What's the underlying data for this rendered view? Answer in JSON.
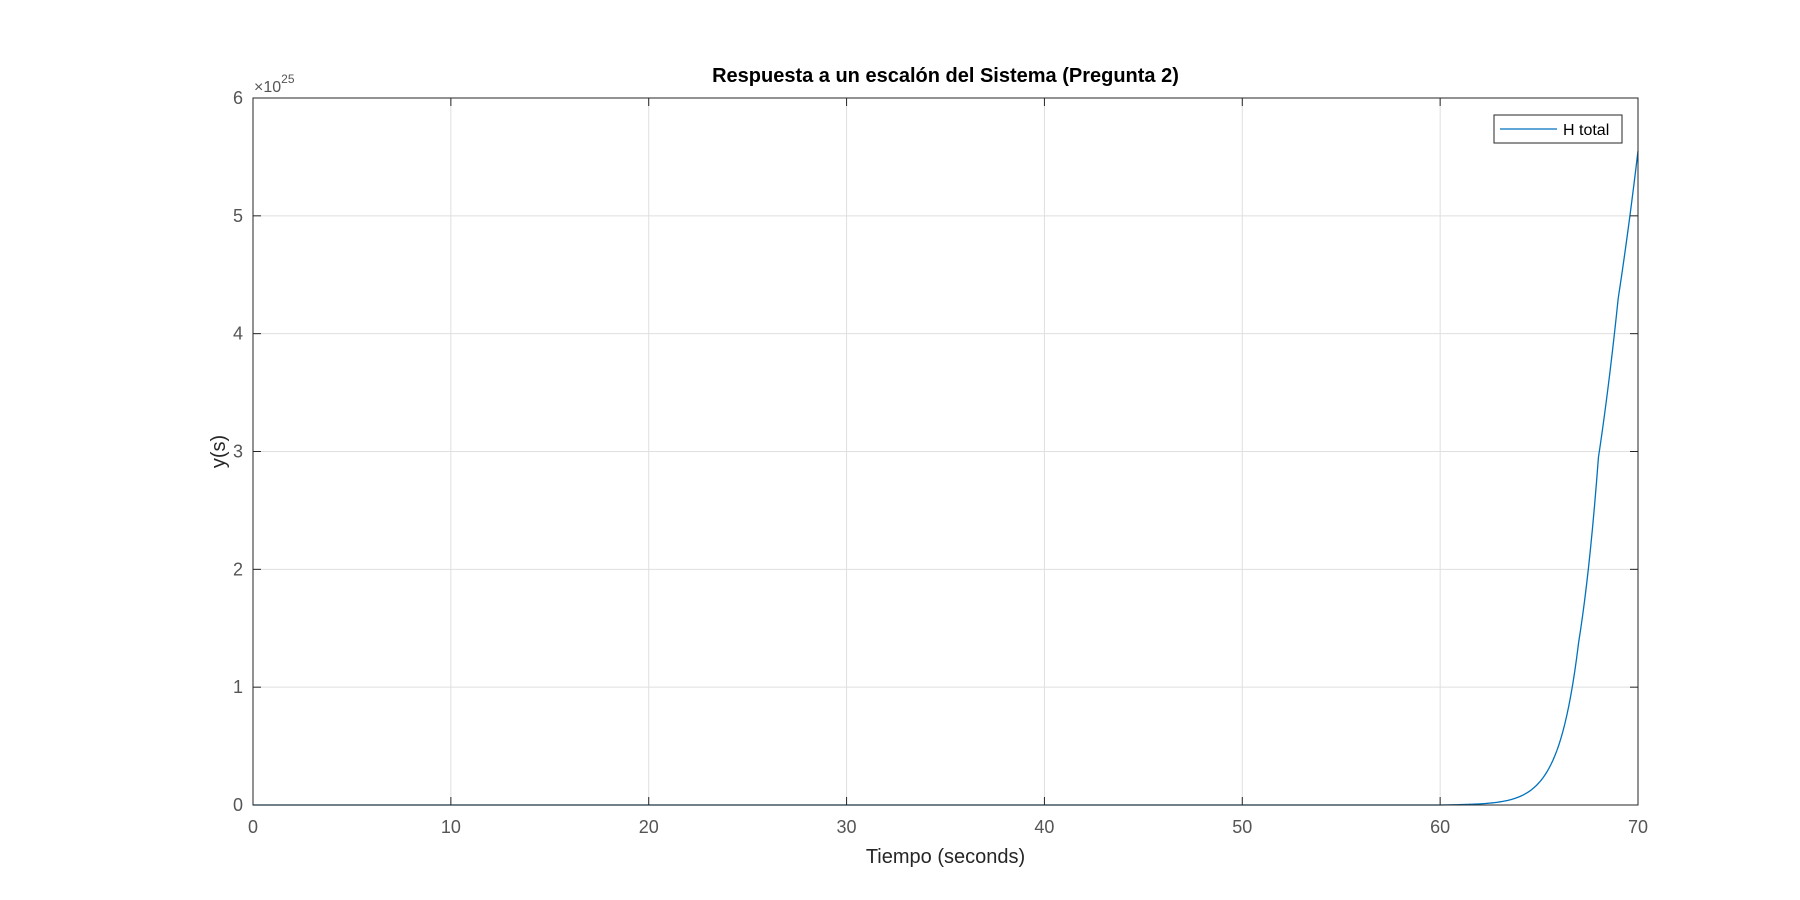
{
  "chart_data": {
    "type": "line",
    "title": "Respuesta a un escalón del Sistema (Pregunta 2)",
    "xlabel": "Tiempo (seconds)",
    "ylabel": "y(s)",
    "xlim": [
      0,
      70
    ],
    "ylim": [
      0,
      6e+25
    ],
    "y_exponent_prefix": "×10",
    "y_exponent": "25",
    "xticks": [
      0,
      10,
      20,
      30,
      40,
      50,
      60,
      70
    ],
    "xtick_labels": [
      "0",
      "10",
      "20",
      "30",
      "40",
      "50",
      "60",
      "70"
    ],
    "yticks": [
      0,
      1e+25,
      2e+25,
      3e+25,
      4e+25,
      5e+25,
      6e+25
    ],
    "ytick_labels": [
      "0",
      "1",
      "2",
      "3",
      "4",
      "5",
      "6"
    ],
    "grid": true,
    "legend_position": "top-right",
    "series": [
      {
        "name": "H total",
        "color": "#0072bd",
        "x": [
          0,
          10,
          20,
          30,
          40,
          50,
          60,
          61,
          62,
          63,
          64,
          65,
          66,
          67,
          68,
          69,
          70
        ],
        "y": [
          0,
          0,
          0,
          0,
          0,
          0,
          0,
          3.5e+22,
          9.5e+22,
          2.6e+23,
          7e+23,
          1.9e+24,
          5.1e+24,
          1.38e+25,
          2.95e+25,
          4.3e+25,
          5.55e+25
        ]
      }
    ]
  }
}
